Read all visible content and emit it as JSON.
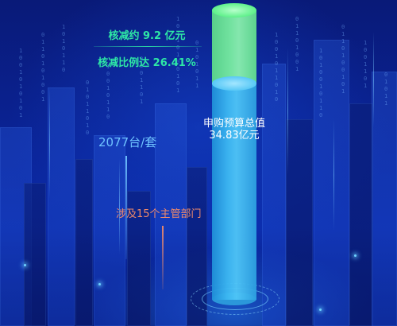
{
  "kpi": {
    "savings_label": "核减约 9.2 亿元",
    "rate_label": "核减比例达 26.41%"
  },
  "cylinder": {
    "caption_title": "申购预算总值",
    "caption_value": "34.83亿元",
    "reduction_share": 0.2641,
    "colors": {
      "reduced": "#7af2a0",
      "remaining": "#3cb8f2"
    }
  },
  "annotations": {
    "units_label": "2077台/套",
    "units_color": "#6fc3ff",
    "departments_label": "涉及15个主管部门",
    "departments_color": "#f08a6a"
  }
}
